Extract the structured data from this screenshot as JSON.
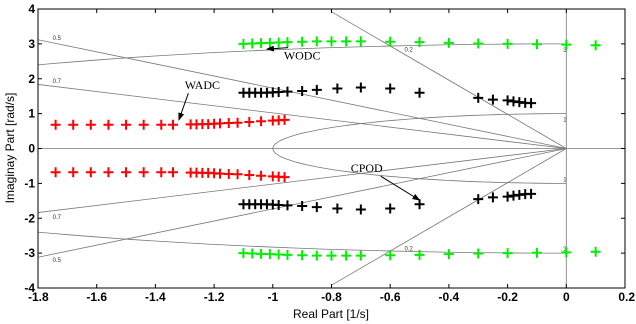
{
  "chart_data": {
    "type": "scatter",
    "title": "",
    "xlabel": "Real Part [1/s]",
    "ylabel": "Imaginay Part [rad/s]",
    "xlim": [
      -1.8,
      0.2
    ],
    "ylim": [
      -4,
      4
    ],
    "xticks": [
      "-1.8",
      "-1.6",
      "-1.4",
      "-1.2",
      "-1",
      "-0.8",
      "-0.6",
      "-0.4",
      "-0.2",
      "0",
      "0.2"
    ],
    "yticks": [
      "4",
      "3",
      "2",
      "1",
      "0",
      "-1",
      "-2",
      "-3",
      "-4"
    ],
    "marker": "+",
    "damping_grid": {
      "ratios": [
        "0.5",
        "0.7",
        "0.2"
      ],
      "natural_freq_labels": [
        "1",
        "3"
      ],
      "natural_freqs": [
        1,
        3
      ]
    },
    "series": [
      {
        "color": "#ff0000",
        "points": [
          [
            -1.74,
            0.68
          ],
          [
            -1.68,
            0.68
          ],
          [
            -1.62,
            0.68
          ],
          [
            -1.56,
            0.68
          ],
          [
            -1.5,
            0.68
          ],
          [
            -1.44,
            0.68
          ],
          [
            -1.38,
            0.68
          ],
          [
            -1.34,
            0.68
          ],
          [
            -1.28,
            0.69
          ],
          [
            -1.26,
            0.69
          ],
          [
            -1.24,
            0.7
          ],
          [
            -1.22,
            0.7
          ],
          [
            -1.2,
            0.71
          ],
          [
            -1.18,
            0.72
          ],
          [
            -1.15,
            0.73
          ],
          [
            -1.12,
            0.74
          ],
          [
            -1.08,
            0.76
          ],
          [
            -1.04,
            0.78
          ],
          [
            -1.0,
            0.8
          ],
          [
            -0.98,
            0.81
          ],
          [
            -0.96,
            0.82
          ],
          [
            -1.74,
            -0.68
          ],
          [
            -1.68,
            -0.68
          ],
          [
            -1.62,
            -0.68
          ],
          [
            -1.56,
            -0.68
          ],
          [
            -1.5,
            -0.68
          ],
          [
            -1.44,
            -0.68
          ],
          [
            -1.38,
            -0.68
          ],
          [
            -1.34,
            -0.68
          ],
          [
            -1.28,
            -0.69
          ],
          [
            -1.26,
            -0.69
          ],
          [
            -1.24,
            -0.7
          ],
          [
            -1.22,
            -0.7
          ],
          [
            -1.2,
            -0.71
          ],
          [
            -1.18,
            -0.72
          ],
          [
            -1.15,
            -0.73
          ],
          [
            -1.12,
            -0.74
          ],
          [
            -1.08,
            -0.76
          ],
          [
            -1.04,
            -0.78
          ],
          [
            -1.0,
            -0.8
          ],
          [
            -0.98,
            -0.81
          ],
          [
            -0.96,
            -0.82
          ]
        ]
      },
      {
        "color": "#000000",
        "points": [
          [
            -1.1,
            1.6
          ],
          [
            -1.08,
            1.6
          ],
          [
            -1.06,
            1.6
          ],
          [
            -1.04,
            1.6
          ],
          [
            -1.02,
            1.6
          ],
          [
            -1.0,
            1.61
          ],
          [
            -0.98,
            1.62
          ],
          [
            -0.95,
            1.63
          ],
          [
            -0.9,
            1.65
          ],
          [
            -0.85,
            1.68
          ],
          [
            -0.78,
            1.72
          ],
          [
            -0.7,
            1.75
          ],
          [
            -0.6,
            1.72
          ],
          [
            -0.5,
            1.6
          ],
          [
            -0.3,
            1.45
          ],
          [
            -0.25,
            1.4
          ],
          [
            -0.2,
            1.38
          ],
          [
            -0.18,
            1.35
          ],
          [
            -0.16,
            1.33
          ],
          [
            -0.14,
            1.31
          ],
          [
            -0.12,
            1.3
          ],
          [
            -1.1,
            -1.6
          ],
          [
            -1.08,
            -1.6
          ],
          [
            -1.06,
            -1.6
          ],
          [
            -1.04,
            -1.6
          ],
          [
            -1.02,
            -1.6
          ],
          [
            -1.0,
            -1.61
          ],
          [
            -0.98,
            -1.62
          ],
          [
            -0.95,
            -1.63
          ],
          [
            -0.9,
            -1.65
          ],
          [
            -0.85,
            -1.68
          ],
          [
            -0.78,
            -1.72
          ],
          [
            -0.7,
            -1.75
          ],
          [
            -0.6,
            -1.72
          ],
          [
            -0.5,
            -1.6
          ],
          [
            -0.3,
            -1.45
          ],
          [
            -0.25,
            -1.4
          ],
          [
            -0.2,
            -1.38
          ],
          [
            -0.18,
            -1.35
          ],
          [
            -0.16,
            -1.33
          ],
          [
            -0.14,
            -1.31
          ],
          [
            -0.12,
            -1.3
          ]
        ]
      },
      {
        "color": "#00ee00",
        "points": [
          [
            -1.1,
            3.0
          ],
          [
            -1.07,
            3.01
          ],
          [
            -1.04,
            3.02
          ],
          [
            -1.01,
            3.03
          ],
          [
            -0.98,
            3.04
          ],
          [
            -0.95,
            3.05
          ],
          [
            -0.9,
            3.06
          ],
          [
            -0.85,
            3.07
          ],
          [
            -0.8,
            3.07
          ],
          [
            -0.75,
            3.07
          ],
          [
            -0.7,
            3.07
          ],
          [
            -0.6,
            3.06
          ],
          [
            -0.5,
            3.05
          ],
          [
            -0.4,
            3.03
          ],
          [
            -0.3,
            3.01
          ],
          [
            -0.2,
            3.0
          ],
          [
            -0.1,
            2.99
          ],
          [
            0.0,
            2.98
          ],
          [
            0.1,
            2.96
          ],
          [
            -1.1,
            -3.0
          ],
          [
            -1.07,
            -3.01
          ],
          [
            -1.04,
            -3.02
          ],
          [
            -1.01,
            -3.03
          ],
          [
            -0.98,
            -3.04
          ],
          [
            -0.95,
            -3.05
          ],
          [
            -0.9,
            -3.06
          ],
          [
            -0.85,
            -3.07
          ],
          [
            -0.8,
            -3.07
          ],
          [
            -0.75,
            -3.07
          ],
          [
            -0.7,
            -3.07
          ],
          [
            -0.6,
            -3.06
          ],
          [
            -0.5,
            -3.05
          ],
          [
            -0.4,
            -3.03
          ],
          [
            -0.3,
            -3.01
          ],
          [
            -0.2,
            -3.0
          ],
          [
            -0.1,
            -2.99
          ],
          [
            0.0,
            -2.98
          ],
          [
            0.1,
            -2.96
          ]
        ]
      }
    ],
    "annotations": [
      {
        "text": "WODC",
        "text_at": [
          -0.9,
          2.55
        ],
        "arrow_to": [
          -1.02,
          2.85
        ]
      },
      {
        "text": "WADC",
        "text_at": [
          -1.24,
          1.7
        ],
        "arrow_to": [
          -1.32,
          0.82
        ]
      },
      {
        "text": "CPOD",
        "text_at": [
          -0.68,
          -0.68
        ],
        "arrow_to": [
          -0.5,
          -1.48
        ]
      }
    ]
  }
}
